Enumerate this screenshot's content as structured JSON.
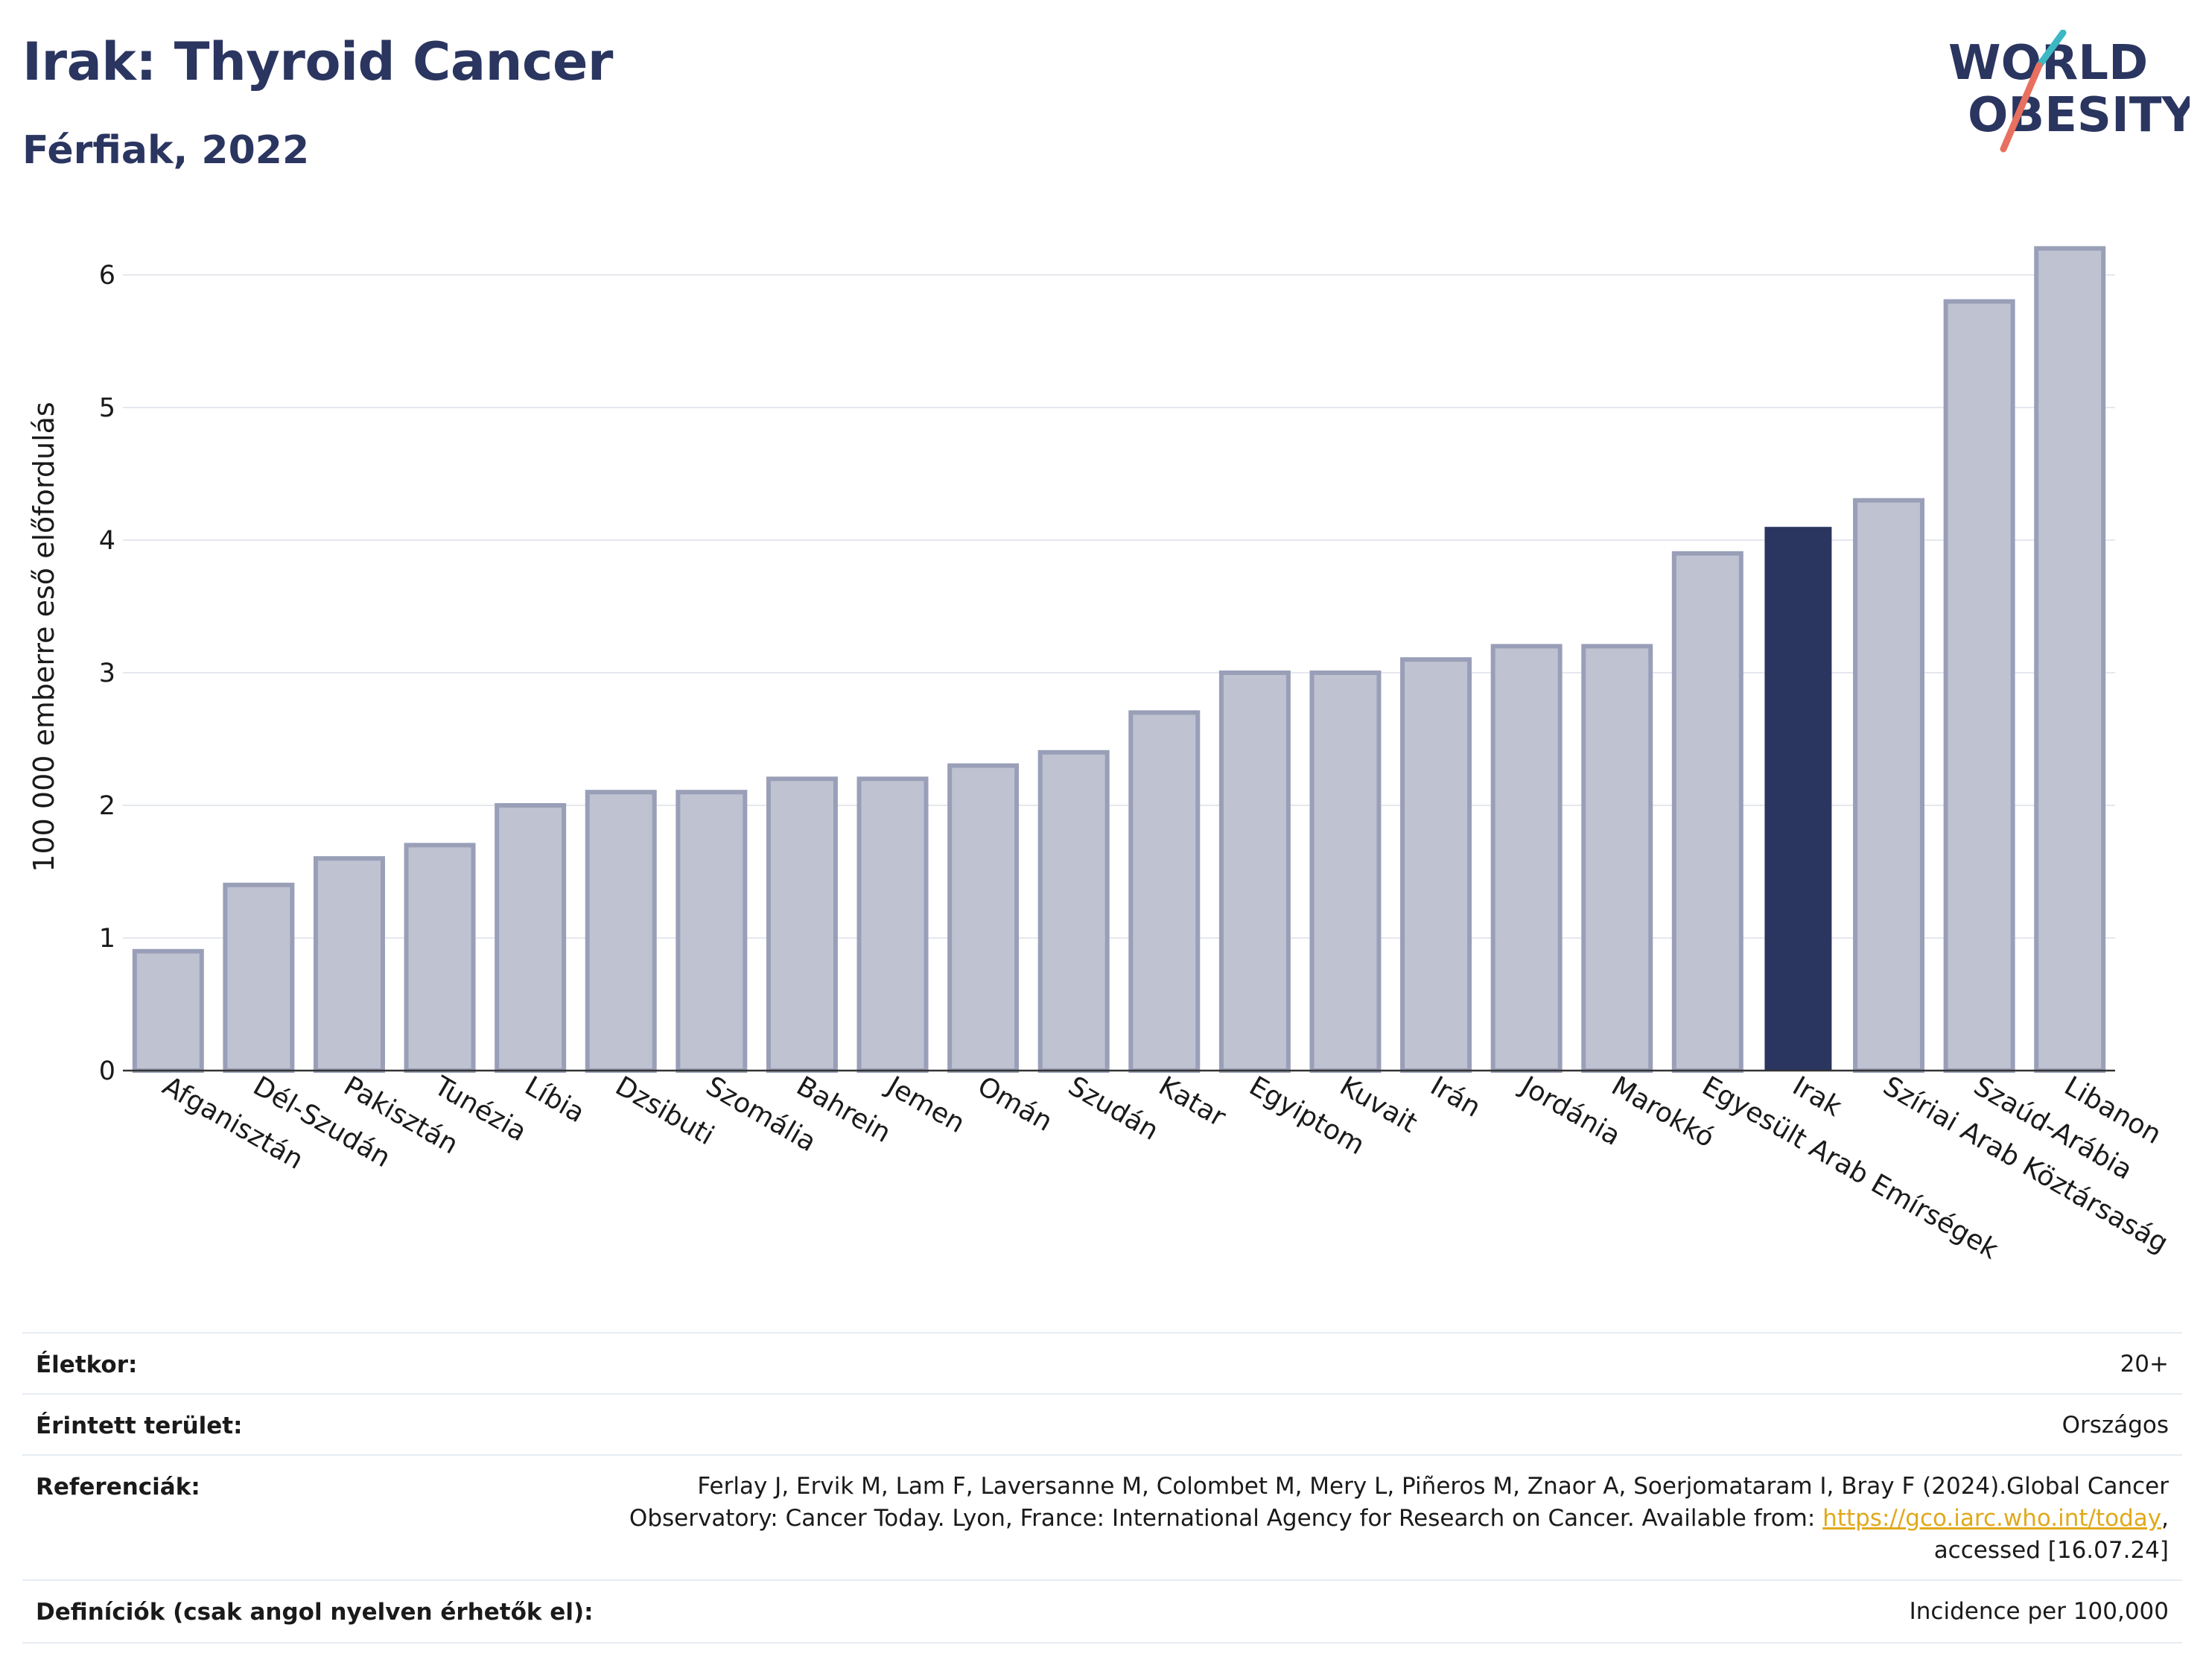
{
  "header": {
    "title": "Irak: Thyroid Cancer",
    "subtitle": "Férfiak, 2022"
  },
  "logo": {
    "line1": "WORLD",
    "line2": "OBESITY",
    "slash_colors": [
      "#3bb8c3",
      "#e8705f"
    ],
    "text_color": "#2a3560"
  },
  "colors": {
    "bar": "#bfc2d0",
    "bar_border": "#9a9fb8",
    "highlight": "#2a3560",
    "grid": "#e5e8ee"
  },
  "chart_data": {
    "type": "bar",
    "ylabel": "100 000 emberre eső előfordulás",
    "ylim": [
      0,
      6.4
    ],
    "yticks": [
      0,
      1,
      2,
      3,
      4,
      5,
      6
    ],
    "grid": true,
    "highlight": "Irak",
    "categories": [
      "Afganisztán",
      "Dél-Szudán",
      "Pakisztán",
      "Tunézia",
      "Líbia",
      "Dzsibuti",
      "Szomália",
      "Bahrein",
      "Jemen",
      "Omán",
      "Szudán",
      "Katar",
      "Egyiptom",
      "Kuvait",
      "Irán",
      "Jordánia",
      "Marokkó",
      "Egyesült Arab Emírségek",
      "Irak",
      "Szíriai Arab Köztársaság",
      "Szaúd-Arábia",
      "Libanon"
    ],
    "values": [
      0.9,
      1.4,
      1.6,
      1.7,
      2.0,
      2.1,
      2.1,
      2.2,
      2.2,
      2.3,
      2.4,
      2.7,
      3.0,
      3.0,
      3.1,
      3.2,
      3.2,
      3.9,
      4.1,
      4.3,
      5.8,
      6.2
    ]
  },
  "info": {
    "age_label": "Életkor:",
    "age_value": "20+",
    "area_label": "Érintett terület:",
    "area_value": "Országos",
    "ref_label": "Referenciák:",
    "ref_line1": "Ferlay J, Ervik M, Lam F, Laversanne M, Colombet M, Mery L, Piñeros M, Znaor A, Soerjomataram I, Bray F (2024).Global Cancer",
    "ref_line2_pre": "Observatory: Cancer Today. Lyon, France: International Agency for Research on Cancer. Available from: ",
    "ref_link": "https://gco.iarc.who.int/today",
    "ref_line2_post": ",",
    "ref_line3": "accessed [16.07.24]",
    "def_label": "Definíciók (csak angol nyelven érhetők el):",
    "def_value": "Incidence per 100,000"
  }
}
